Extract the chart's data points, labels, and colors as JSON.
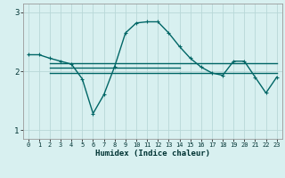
{
  "title": "",
  "xlabel": "Humidex (Indice chaleur)",
  "bg_color": "#d8f0f0",
  "line_color": "#006666",
  "grid_color": "#b8d8d8",
  "xlim": [
    -0.5,
    23.5
  ],
  "ylim": [
    0.85,
    3.15
  ],
  "yticks": [
    1,
    2,
    3
  ],
  "xticks": [
    0,
    1,
    2,
    3,
    4,
    5,
    6,
    7,
    8,
    9,
    10,
    11,
    12,
    13,
    14,
    15,
    16,
    17,
    18,
    19,
    20,
    21,
    22,
    23
  ],
  "line1_x": [
    0,
    1,
    2,
    3,
    4,
    5,
    6,
    7,
    8,
    9,
    10,
    11,
    12,
    13,
    14,
    15,
    16,
    17,
    18,
    19,
    20,
    21,
    22,
    23
  ],
  "line1_y": [
    2.28,
    2.28,
    2.22,
    2.17,
    2.12,
    1.87,
    1.28,
    1.6,
    2.08,
    2.65,
    2.82,
    2.84,
    2.84,
    2.65,
    2.42,
    2.22,
    2.07,
    1.97,
    1.93,
    2.17,
    2.17,
    1.9,
    1.63,
    1.9
  ],
  "hline1_x0": 2,
  "hline1_x1": 23,
  "hline1_y": 2.13,
  "hline2_x0": 2,
  "hline2_x1": 9,
  "hline2_y": 2.13,
  "hline3_x0": 9,
  "hline3_x1": 23,
  "hline3_y": 2.07,
  "hline4_x0": 2,
  "hline4_x1": 14,
  "hline4_y": 1.97,
  "hline5_x0": 14,
  "hline5_x1": 23,
  "hline5_y": 1.97,
  "flat_lines": [
    {
      "x0": 2,
      "x1": 23,
      "y": 2.13
    },
    {
      "x0": 2,
      "x1": 14,
      "y": 2.06
    },
    {
      "x0": 2,
      "x1": 14,
      "y": 1.97
    },
    {
      "x0": 14,
      "x1": 23,
      "y": 1.97
    }
  ]
}
